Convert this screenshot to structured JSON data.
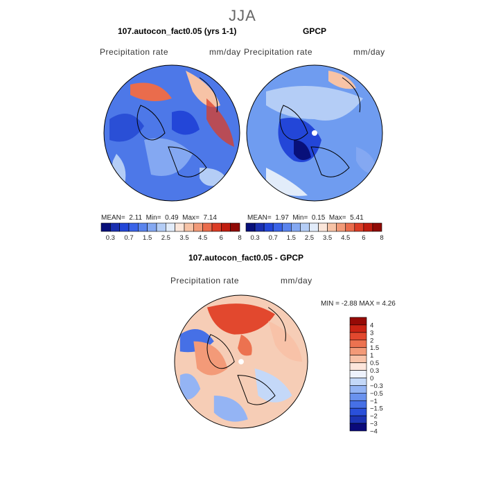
{
  "title": "JJA",
  "panel1": {
    "title": "107.autocon_fact0.05 (yrs 1-1)",
    "var_label": "Precipitation rate",
    "units": "mm/day",
    "stats": {
      "mean_label": "MEAN=",
      "mean": "2.11",
      "min_label": "Min=",
      "min": "0.49",
      "max_label": "Max=",
      "max": "7.14"
    }
  },
  "panel2": {
    "title": "GPCP",
    "var_label": "Precipitation rate",
    "units": "mm/day",
    "stats": {
      "mean_label": "MEAN=",
      "mean": "1.97",
      "min_label": "Min=",
      "min": "0.15",
      "max_label": "Max=",
      "max": "5.41"
    }
  },
  "panel3": {
    "title": "107.autocon_fact0.05 - GPCP",
    "var_label": "Precipitation rate",
    "units": "mm/day",
    "minmax": {
      "min_label": "MIN =",
      "min": "-2.88",
      "max_label": "MAX =",
      "max": "4.26"
    }
  },
  "colorbar_abs": {
    "colors": [
      "#08107a",
      "#1a2fb0",
      "#2346d8",
      "#3a63e8",
      "#5a84ee",
      "#84a8f2",
      "#b4cdf6",
      "#e2ecfa",
      "#fbe6da",
      "#f7c3a6",
      "#f29a78",
      "#ea6c4c",
      "#dc3d26",
      "#c01d10",
      "#900a06"
    ],
    "tick_labels": [
      "0.3",
      "0.7",
      "1.5",
      "2.5",
      "3.5",
      "4.5",
      "6",
      "8"
    ]
  },
  "colorbar_diff": {
    "colors": [
      "#0a0a7a",
      "#1c34b4",
      "#2a50da",
      "#4670e6",
      "#6a92ee",
      "#94b4f4",
      "#c4d8f8",
      "#eef2fc",
      "#fde6dc",
      "#f8c2a8",
      "#f39a78",
      "#ec7250",
      "#e2482e",
      "#ca2414",
      "#960a06"
    ],
    "tick_labels": [
      "4",
      "3",
      "2",
      "1.5",
      "1",
      "0.5",
      "0.3",
      "0",
      "−0.3",
      "−0.5",
      "−1",
      "−1.5",
      "−2",
      "−3",
      "−4"
    ]
  },
  "fields": {
    "panel1_base": "#4d78e8",
    "panel2_base": "#6f9cf0",
    "panel3_base": "#f6cdb6"
  }
}
